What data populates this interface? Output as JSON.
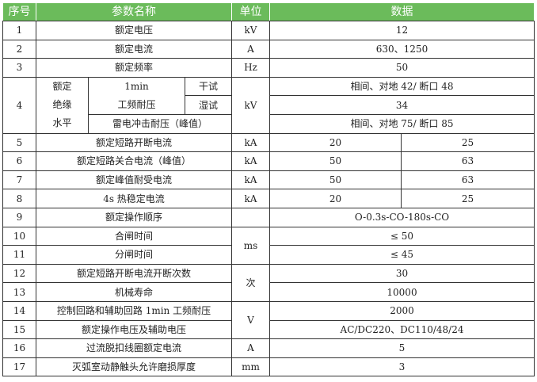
{
  "header": {
    "no": "序号",
    "name": "参数名称",
    "unit": "单位",
    "data": "数据"
  },
  "header_color": "#6bbb5b",
  "rows": [
    {
      "no": "1",
      "name": "额定电压",
      "unit": "kV",
      "data": "12"
    },
    {
      "no": "2",
      "name": "额定电流",
      "unit": "A",
      "data": "630、1250"
    },
    {
      "no": "3",
      "name": "额定频率",
      "unit": "Hz",
      "data": "50"
    }
  ],
  "row4": {
    "no": "4",
    "group": "额定绝缘水平",
    "group_lines": [
      "额定",
      "绝缘",
      "水平"
    ],
    "pf_line1": "1min",
    "pf_line2": "工频耐压",
    "dry": "干试",
    "wet": "湿试",
    "unit": "kV",
    "dry_value": "相间、对地 42/ 断口 48",
    "wet_value": "34",
    "lightning": "雷电冲击耐压（峰值）",
    "lightning_value": "相间、对地 75/ 断口 85"
  },
  "split_rows": [
    {
      "no": "5",
      "name": "额定短路开断电流",
      "unit": "kA",
      "v1": "20",
      "v2": "25"
    },
    {
      "no": "6",
      "name": "额定短路关合电流（峰值）",
      "unit": "kA",
      "v1": "50",
      "v2": "63"
    },
    {
      "no": "7",
      "name": "额定峰值耐受电流",
      "unit": "kA",
      "v1": "50",
      "v2": "63"
    },
    {
      "no": "8",
      "name": "4s 热稳定电流",
      "unit": "kA",
      "v1": "20",
      "v2": "25"
    }
  ],
  "row9": {
    "no": "9",
    "name": "额定操作顺序",
    "unit": "",
    "data": "O-0.3s-CO-180s-CO"
  },
  "pair_rows": [
    {
      "unit": "ms",
      "items": [
        {
          "no": "10",
          "name": "合闸时间",
          "data": "≤ 50"
        },
        {
          "no": "11",
          "name": "分闸时间",
          "data": "≤ 45"
        }
      ]
    },
    {
      "unit": "次",
      "items": [
        {
          "no": "12",
          "name": "额定短路开断电流开断次数",
          "data": "30"
        },
        {
          "no": "13",
          "name": "机械寿命",
          "data": "10000"
        }
      ]
    },
    {
      "unit": "V",
      "items": [
        {
          "no": "14",
          "name": "控制回路和辅助回路 1min 工频耐压",
          "data": "2000"
        },
        {
          "no": "15",
          "name": "额定操作电压及辅助电压",
          "data": "AC/DC220、DC110/48/24"
        }
      ]
    }
  ],
  "tail_rows": [
    {
      "no": "16",
      "name": "过流脱扣线圈额定电流",
      "unit": "A",
      "data": "5"
    },
    {
      "no": "17",
      "name": "灭弧室动静触头允许磨损厚度",
      "unit": "mm",
      "data": "3"
    }
  ]
}
